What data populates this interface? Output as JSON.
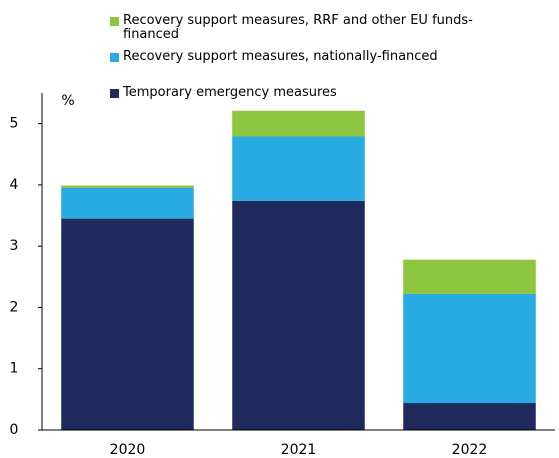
{
  "chart_data": {
    "type": "stacked-bar",
    "y_label": "%",
    "categories": [
      "2020",
      "2021",
      "2022"
    ],
    "series": [
      {
        "name": "Temporary emergency measures",
        "color": "#1f2a5c",
        "values": [
          3.45,
          3.74,
          0.44
        ]
      },
      {
        "name": "Recovery support measures, nationally-financed",
        "color": "#29abe2",
        "values": [
          0.5,
          1.05,
          1.78
        ]
      },
      {
        "name": "Recovery support measures, RRF and other EU funds-financed",
        "color": "#8dc63f",
        "values": [
          0.04,
          0.42,
          0.56
        ]
      }
    ],
    "ylim": [
      0,
      5.5
    ],
    "yticks": [
      0,
      1,
      2,
      3,
      4,
      5
    ],
    "grid": false
  }
}
